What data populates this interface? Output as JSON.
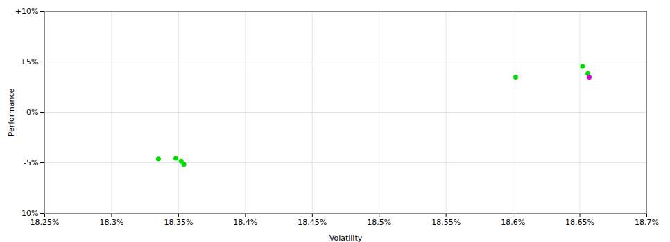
{
  "chart_data": {
    "type": "scatter",
    "xlabel": "Volatility",
    "ylabel": "Performance",
    "xlim": [
      18.25,
      18.7
    ],
    "ylim": [
      -10,
      10
    ],
    "xticks": [
      {
        "value": 18.25,
        "label": "18.25%"
      },
      {
        "value": 18.3,
        "label": "18.3%"
      },
      {
        "value": 18.35,
        "label": "18.35%"
      },
      {
        "value": 18.4,
        "label": "18.4%"
      },
      {
        "value": 18.45,
        "label": "18.45%"
      },
      {
        "value": 18.5,
        "label": "18.5%"
      },
      {
        "value": 18.55,
        "label": "18.55%"
      },
      {
        "value": 18.6,
        "label": "18.6%"
      },
      {
        "value": 18.65,
        "label": "18.65%"
      },
      {
        "value": 18.7,
        "label": "18.7%"
      }
    ],
    "yticks": [
      {
        "value": -10,
        "label": "-10%"
      },
      {
        "value": -5,
        "label": "-5%"
      },
      {
        "value": 0,
        "label": "0%"
      },
      {
        "value": 5,
        "label": "+5%"
      },
      {
        "value": 10,
        "label": "+10%"
      }
    ],
    "grid": true,
    "series": [
      {
        "color": "#00dd00",
        "x": [
          18.335,
          18.348,
          18.352,
          18.354,
          18.602,
          18.652,
          18.656
        ],
        "values": [
          -4.6,
          -4.55,
          -4.85,
          -5.15,
          3.5,
          4.55,
          3.85
        ]
      },
      {
        "color": "#dd00dd",
        "x": [
          18.657
        ],
        "values": [
          3.5
        ]
      }
    ]
  }
}
